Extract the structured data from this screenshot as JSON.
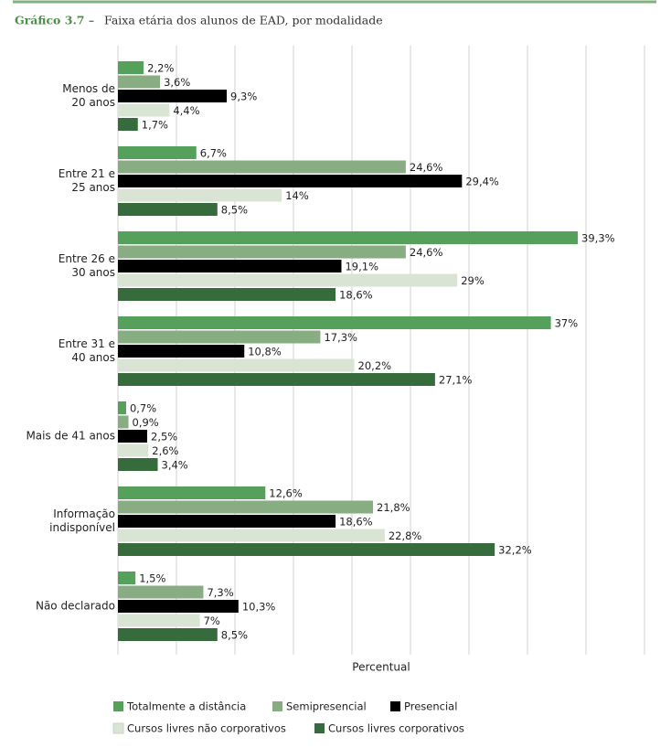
{
  "chart_data": {
    "type": "hbar",
    "title_label": "Gráfico 3.7 –",
    "title": "Faixa etária dos alunos de EAD, por modalidade",
    "xlabel": "Percentual",
    "categories": [
      "Menos de\n20 anos",
      "Entre 21 e\n25 anos",
      "Entre 26 e\n30 anos",
      "Entre 31 e\n40 anos",
      "Mais de 41 anos",
      "Informação\nindisponível",
      "Não declarado"
    ],
    "series": [
      {
        "name": "Totalmente a distância",
        "color": "#55a05a",
        "values": [
          2.2,
          6.7,
          39.3,
          37,
          0.7,
          12.6,
          1.5
        ],
        "value_labels": [
          "2,2%",
          "6,7%",
          "39,3%",
          "37%",
          "0,7%",
          "12,6%",
          "1,5%"
        ]
      },
      {
        "name": "Semipresencial",
        "color": "#88ad82",
        "values": [
          3.6,
          24.6,
          24.6,
          17.3,
          0.9,
          21.8,
          7.3
        ],
        "value_labels": [
          "3,6%",
          "24,6%",
          "24,6%",
          "17,3%",
          "0,9%",
          "21,8%",
          "7,3%"
        ]
      },
      {
        "name": "Presencial",
        "color": "#000000",
        "values": [
          9.3,
          29.4,
          19.1,
          10.8,
          2.5,
          18.6,
          10.3
        ],
        "value_labels": [
          "9,3%",
          "29,4%",
          "19,1%",
          "10,8%",
          "2,5%",
          "18,6%",
          "10,3%"
        ]
      },
      {
        "name": "Cursos livres não corporativos",
        "color": "#d9e4d4",
        "values": [
          4.4,
          14,
          29,
          20.2,
          2.6,
          22.8,
          7
        ],
        "value_labels": [
          "4,4%",
          "14%",
          "29%",
          "20,2%",
          "2,6%",
          "22,8%",
          "7%"
        ]
      },
      {
        "name": "Cursos livres corporativos",
        "color": "#366c3b",
        "values": [
          1.7,
          8.5,
          18.6,
          27.1,
          3.4,
          32.2,
          8.5
        ],
        "value_labels": [
          "1,7%",
          "8,5%",
          "18,6%",
          "27,1%",
          "3,4%",
          "32,2%",
          "8,5%"
        ]
      }
    ],
    "xlim": [
      0,
      45
    ],
    "xticks": [
      0,
      5,
      10,
      15,
      20,
      25,
      30,
      35,
      40,
      45
    ],
    "grid": true
  }
}
